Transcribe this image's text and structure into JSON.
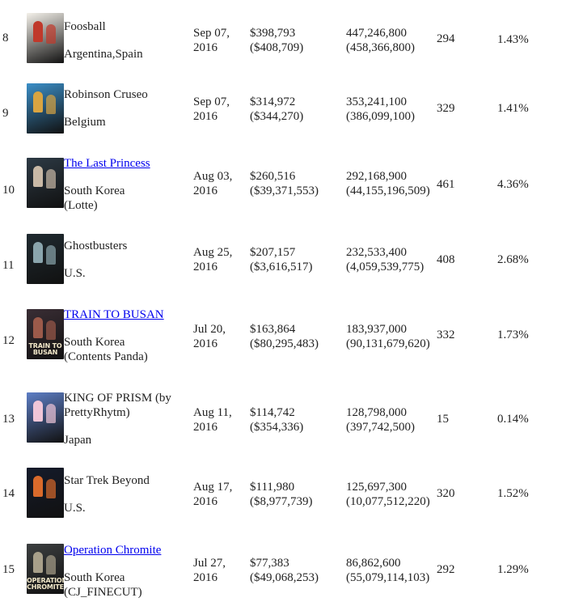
{
  "rows": [
    {
      "rank": "8",
      "title": "Foosball",
      "title_link": false,
      "country": [
        "Argentina,Spain"
      ],
      "date": [
        "Sep 07,",
        "2016"
      ],
      "revenue_usd": "$398,793",
      "revenue_local": "($408,709)",
      "admissions": "447,246,800",
      "admissions_local": "(458,366,800)",
      "screens": "294",
      "share": "1.43%",
      "poster": {
        "icon": "foosball-poster-icon",
        "bg": "#f4f1ea",
        "accent": "#c0392b",
        "text": ""
      }
    },
    {
      "rank": "9",
      "title": "Robinson Cruseo",
      "title_link": false,
      "country": [
        "Belgium"
      ],
      "date": [
        "Sep 07,",
        "2016"
      ],
      "revenue_usd": "$314,972",
      "revenue_local": "($344,270)",
      "admissions": "353,241,100",
      "admissions_local": "(386,099,100)",
      "screens": "329",
      "share": "1.41%",
      "poster": {
        "icon": "robinson-crusoe-poster-icon",
        "bg": "#3b8fc8",
        "accent": "#d9a441",
        "text": ""
      }
    },
    {
      "rank": "10",
      "title": "The Last Princess",
      "title_link": true,
      "country": [
        "South Korea",
        "(Lotte)"
      ],
      "date": [
        "Aug 03,",
        "2016"
      ],
      "revenue_usd": "$260,516",
      "revenue_local": "($39,371,553)",
      "admissions": "292,168,900",
      "admissions_local": "(44,155,196,509)",
      "screens": "461",
      "share": "4.36%",
      "poster": {
        "icon": "last-princess-poster-icon",
        "bg": "#2d3a45",
        "accent": "#c9b9a6",
        "text": ""
      }
    },
    {
      "rank": "11",
      "title": "Ghostbusters",
      "title_link": false,
      "country": [
        "U.S."
      ],
      "date": [
        "Aug 25,",
        "2016"
      ],
      "revenue_usd": "$207,157",
      "revenue_local": "($3,616,517)",
      "admissions": "232,533,400",
      "admissions_local": "(4,059,539,775)",
      "screens": "408",
      "share": "2.68%",
      "poster": {
        "icon": "ghostbusters-poster-icon",
        "bg": "#1f2a30",
        "accent": "#8aa5ad",
        "text": ""
      }
    },
    {
      "rank": "12",
      "title": "TRAIN TO BUSAN",
      "title_link": true,
      "country": [
        "South Korea",
        "(Contents Panda)"
      ],
      "date": [
        "Jul 20,",
        "2016"
      ],
      "revenue_usd": "$163,864",
      "revenue_local": "($80,295,483)",
      "admissions": "183,937,000",
      "admissions_local": "(90,131,679,620)",
      "screens": "332",
      "share": "1.73%",
      "poster": {
        "icon": "train-to-busan-poster-icon",
        "bg": "#3a2e35",
        "accent": "#9c5a4a",
        "text": "TRAIN TO BUSAN"
      }
    },
    {
      "rank": "13",
      "title": "KING OF PRISM (by PrettyRhytm)",
      "title_link": false,
      "country": [
        "Japan"
      ],
      "date": [
        "Aug 11,",
        "2016"
      ],
      "revenue_usd": "$114,742",
      "revenue_local": "($354,336)",
      "admissions": "128,798,000",
      "admissions_local": "(397,742,500)",
      "screens": "15",
      "share": "0.14%",
      "poster": {
        "icon": "king-of-prism-poster-icon",
        "bg": "#5d7ec6",
        "accent": "#f0c6d8",
        "text": ""
      }
    },
    {
      "rank": "14",
      "title": "Star Trek Beyond",
      "title_link": false,
      "country": [
        "U.S."
      ],
      "date": [
        "Aug 17,",
        "2016"
      ],
      "revenue_usd": "$111,980",
      "revenue_local": "($8,977,739)",
      "admissions": "125,697,300",
      "admissions_local": "(10,077,512,220)",
      "screens": "320",
      "share": "1.52%",
      "poster": {
        "icon": "star-trek-beyond-poster-icon",
        "bg": "#151b2b",
        "accent": "#d96a2b",
        "text": ""
      }
    },
    {
      "rank": "15",
      "title": "Operation Chromite",
      "title_link": true,
      "country": [
        "South Korea",
        "(CJ_FINECUT)"
      ],
      "date": [
        "Jul 27,",
        "2016"
      ],
      "revenue_usd": "$77,383",
      "revenue_local": "($49,068,253)",
      "admissions": "86,862,600",
      "admissions_local": "(55,079,114,103)",
      "screens": "292",
      "share": "1.29%",
      "poster": {
        "icon": "operation-chromite-poster-icon",
        "bg": "#3c3f40",
        "accent": "#a8a08a",
        "text": "OPERATION CHROMITE"
      }
    }
  ]
}
